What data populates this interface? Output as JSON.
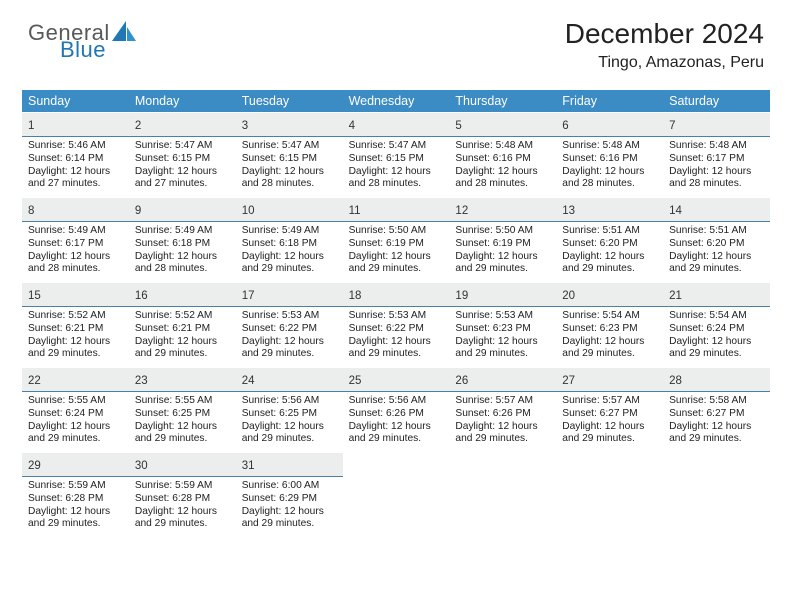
{
  "logo": {
    "text1": "General",
    "text2": "Blue"
  },
  "title": "December 2024",
  "location": "Tingo, Amazonas, Peru",
  "colors": {
    "header_blue": "#3b8bc4",
    "gray_band": "#eceded",
    "rule": "#4a7fa8",
    "logo_gray": "#58595b",
    "logo_blue": "#1f77b4",
    "text": "#222222",
    "bg": "#ffffff"
  },
  "weekdays": [
    "Sunday",
    "Monday",
    "Tuesday",
    "Wednesday",
    "Thursday",
    "Friday",
    "Saturday"
  ],
  "days": [
    {
      "n": 1,
      "sr": "5:46 AM",
      "ss": "6:14 PM",
      "dl": "12 hours and 27 minutes."
    },
    {
      "n": 2,
      "sr": "5:47 AM",
      "ss": "6:15 PM",
      "dl": "12 hours and 27 minutes."
    },
    {
      "n": 3,
      "sr": "5:47 AM",
      "ss": "6:15 PM",
      "dl": "12 hours and 28 minutes."
    },
    {
      "n": 4,
      "sr": "5:47 AM",
      "ss": "6:15 PM",
      "dl": "12 hours and 28 minutes."
    },
    {
      "n": 5,
      "sr": "5:48 AM",
      "ss": "6:16 PM",
      "dl": "12 hours and 28 minutes."
    },
    {
      "n": 6,
      "sr": "5:48 AM",
      "ss": "6:16 PM",
      "dl": "12 hours and 28 minutes."
    },
    {
      "n": 7,
      "sr": "5:48 AM",
      "ss": "6:17 PM",
      "dl": "12 hours and 28 minutes."
    },
    {
      "n": 8,
      "sr": "5:49 AM",
      "ss": "6:17 PM",
      "dl": "12 hours and 28 minutes."
    },
    {
      "n": 9,
      "sr": "5:49 AM",
      "ss": "6:18 PM",
      "dl": "12 hours and 28 minutes."
    },
    {
      "n": 10,
      "sr": "5:49 AM",
      "ss": "6:18 PM",
      "dl": "12 hours and 29 minutes."
    },
    {
      "n": 11,
      "sr": "5:50 AM",
      "ss": "6:19 PM",
      "dl": "12 hours and 29 minutes."
    },
    {
      "n": 12,
      "sr": "5:50 AM",
      "ss": "6:19 PM",
      "dl": "12 hours and 29 minutes."
    },
    {
      "n": 13,
      "sr": "5:51 AM",
      "ss": "6:20 PM",
      "dl": "12 hours and 29 minutes."
    },
    {
      "n": 14,
      "sr": "5:51 AM",
      "ss": "6:20 PM",
      "dl": "12 hours and 29 minutes."
    },
    {
      "n": 15,
      "sr": "5:52 AM",
      "ss": "6:21 PM",
      "dl": "12 hours and 29 minutes."
    },
    {
      "n": 16,
      "sr": "5:52 AM",
      "ss": "6:21 PM",
      "dl": "12 hours and 29 minutes."
    },
    {
      "n": 17,
      "sr": "5:53 AM",
      "ss": "6:22 PM",
      "dl": "12 hours and 29 minutes."
    },
    {
      "n": 18,
      "sr": "5:53 AM",
      "ss": "6:22 PM",
      "dl": "12 hours and 29 minutes."
    },
    {
      "n": 19,
      "sr": "5:53 AM",
      "ss": "6:23 PM",
      "dl": "12 hours and 29 minutes."
    },
    {
      "n": 20,
      "sr": "5:54 AM",
      "ss": "6:23 PM",
      "dl": "12 hours and 29 minutes."
    },
    {
      "n": 21,
      "sr": "5:54 AM",
      "ss": "6:24 PM",
      "dl": "12 hours and 29 minutes."
    },
    {
      "n": 22,
      "sr": "5:55 AM",
      "ss": "6:24 PM",
      "dl": "12 hours and 29 minutes."
    },
    {
      "n": 23,
      "sr": "5:55 AM",
      "ss": "6:25 PM",
      "dl": "12 hours and 29 minutes."
    },
    {
      "n": 24,
      "sr": "5:56 AM",
      "ss": "6:25 PM",
      "dl": "12 hours and 29 minutes."
    },
    {
      "n": 25,
      "sr": "5:56 AM",
      "ss": "6:26 PM",
      "dl": "12 hours and 29 minutes."
    },
    {
      "n": 26,
      "sr": "5:57 AM",
      "ss": "6:26 PM",
      "dl": "12 hours and 29 minutes."
    },
    {
      "n": 27,
      "sr": "5:57 AM",
      "ss": "6:27 PM",
      "dl": "12 hours and 29 minutes."
    },
    {
      "n": 28,
      "sr": "5:58 AM",
      "ss": "6:27 PM",
      "dl": "12 hours and 29 minutes."
    },
    {
      "n": 29,
      "sr": "5:59 AM",
      "ss": "6:28 PM",
      "dl": "12 hours and 29 minutes."
    },
    {
      "n": 30,
      "sr": "5:59 AM",
      "ss": "6:28 PM",
      "dl": "12 hours and 29 minutes."
    },
    {
      "n": 31,
      "sr": "6:00 AM",
      "ss": "6:29 PM",
      "dl": "12 hours and 29 minutes."
    }
  ],
  "labels": {
    "sunrise": "Sunrise: ",
    "sunset": "Sunset: ",
    "daylight": "Daylight: "
  }
}
